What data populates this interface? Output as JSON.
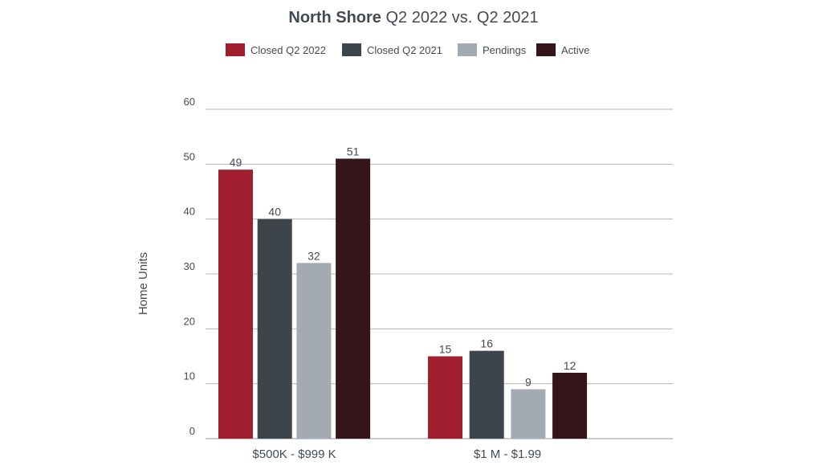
{
  "chart_data": {
    "type": "bar",
    "title_bold": "North Shore",
    "title_rest": " Q2 2022 vs. Q2 2021",
    "ylabel": "Home Units",
    "xlabel": "",
    "ylim": [
      0,
      60
    ],
    "yticks": [
      0,
      10,
      20,
      30,
      40,
      50,
      60
    ],
    "grid": true,
    "legend_position": "top-center",
    "categories": [
      "$500K - $999 K",
      "$1 M - $1.99"
    ],
    "series": [
      {
        "name": "Closed Q2 2022",
        "color": "#a11f2f",
        "values": [
          49,
          15
        ]
      },
      {
        "name": "Closed Q2 2021",
        "color": "#3d444b",
        "values": [
          40,
          16
        ]
      },
      {
        "name": "Pendings",
        "color": "#a3aab1",
        "values": [
          32,
          9
        ]
      },
      {
        "name": "Active",
        "color": "#33151b",
        "values": [
          51,
          12
        ]
      }
    ]
  }
}
